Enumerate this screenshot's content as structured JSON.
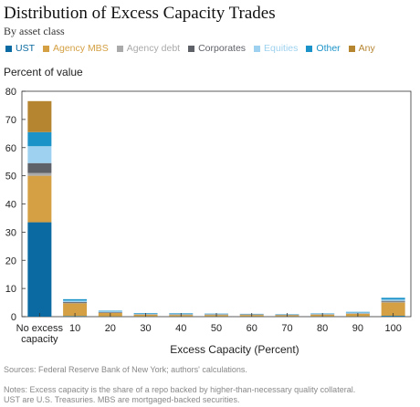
{
  "title": "Distribution of Excess Capacity Trades",
  "subtitle": "By asset class",
  "source": "Sources: Federal Reserve Bank of New York; authors' calculations.",
  "notes": [
    "Notes: Excess capacity is the share of a repo backed by higher-than-necessary quality collateral.",
    "UST are U.S. Treasuries. MBS are mortgaged-backed securities."
  ],
  "chart_data": {
    "type": "bar",
    "stacked": true,
    "title": "Distribution of Excess Capacity Trades",
    "subtitle": "By asset class",
    "xlabel": "Excess Capacity (Percent)",
    "ylabel": "Percent of value",
    "ylim": [
      0,
      80
    ],
    "yticks": [
      0,
      10,
      20,
      30,
      40,
      50,
      60,
      70,
      80
    ],
    "legend_position": "top",
    "grid": false,
    "categories": [
      "No excess capacity",
      "10",
      "20",
      "30",
      "40",
      "50",
      "60",
      "70",
      "80",
      "90",
      "100"
    ],
    "category_labels": [
      [
        "No excess",
        "capacity"
      ],
      [
        "10"
      ],
      [
        "20"
      ],
      [
        "30"
      ],
      [
        "40"
      ],
      [
        "50"
      ],
      [
        "60"
      ],
      [
        "70"
      ],
      [
        "80"
      ],
      [
        "90"
      ],
      [
        "100"
      ]
    ],
    "series": [
      {
        "name": "UST",
        "color": "#0a6aa1",
        "values": [
          33.5,
          0.2,
          0.1,
          0.1,
          0.1,
          0.1,
          0.1,
          0.1,
          0.1,
          0.1,
          0.3
        ]
      },
      {
        "name": "Agency MBS",
        "color": "#d4a043",
        "values": [
          16.5,
          4.5,
          1.2,
          0.6,
          0.5,
          0.5,
          0.5,
          0.4,
          0.6,
          0.9,
          4.7
        ]
      },
      {
        "name": "Agency debt",
        "color": "#aaaaaa",
        "values": [
          1.0,
          0.2,
          0.1,
          0.1,
          0.1,
          0.1,
          0.1,
          0.1,
          0.1,
          0.1,
          0.3
        ]
      },
      {
        "name": "Corporates",
        "color": "#5f6168",
        "values": [
          3.5,
          0.3,
          0.2,
          0.1,
          0.1,
          0.1,
          0.1,
          0.1,
          0.1,
          0.1,
          0.3
        ]
      },
      {
        "name": "Equities",
        "color": "#9dd1ef",
        "values": [
          6.0,
          0.5,
          0.3,
          0.2,
          0.2,
          0.2,
          0.1,
          0.1,
          0.2,
          0.3,
          0.5
        ]
      },
      {
        "name": "Other",
        "color": "#1c93c8",
        "values": [
          5.0,
          0.5,
          0.2,
          0.2,
          0.2,
          0.1,
          0.1,
          0.1,
          0.1,
          0.2,
          0.6
        ]
      },
      {
        "name": "Any",
        "color": "#b58530",
        "values": [
          11.0,
          0.0,
          0.0,
          0.0,
          0.0,
          0.0,
          0.0,
          0.0,
          0.0,
          0.0,
          0.0
        ]
      }
    ]
  }
}
